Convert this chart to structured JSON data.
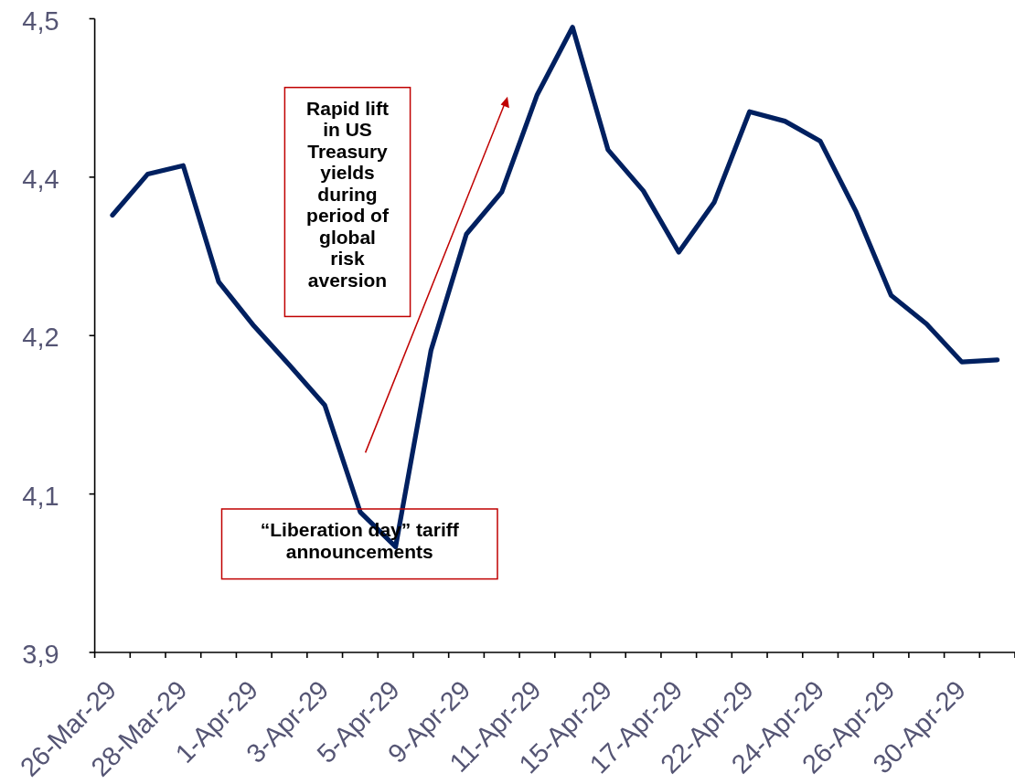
{
  "chart_data": {
    "type": "line",
    "categories": [
      "26-Mar-29",
      null,
      "28-Mar-29",
      null,
      "1-Apr-29",
      null,
      "3-Apr-29",
      null,
      "5-Apr-29",
      null,
      "9-Apr-29",
      null,
      "11-Apr-29",
      null,
      "15-Apr-29",
      null,
      "17-Apr-29",
      null,
      "22-Apr-29",
      null,
      "24-Apr-29",
      null,
      "26-Apr-29",
      null,
      "30-Apr-29",
      null
    ],
    "values": [
      4.314,
      4.353,
      4.361,
      4.251,
      4.209,
      4.172,
      4.134,
      4.033,
      4.0,
      4.186,
      4.296,
      4.336,
      4.428,
      4.492,
      4.376,
      4.337,
      4.279,
      4.326,
      4.412,
      4.403,
      4.384,
      4.318,
      4.238,
      4.211,
      4.175,
      4.177
    ],
    "color": "#002060",
    "ylim": [
      3.9,
      4.5
    ],
    "yticks": [
      {
        "value": 3.9,
        "label": "3,9"
      },
      {
        "value": 4.05,
        "label": "4,1"
      },
      {
        "value": 4.2,
        "label": "4,2"
      },
      {
        "value": 4.35,
        "label": "4,4"
      },
      {
        "value": 4.5,
        "label": "4,5"
      }
    ],
    "annotations": [
      "Rapid lift in US Treasury yields during period of global risk aversion",
      "“Liberation day” tariff announcements"
    ]
  }
}
